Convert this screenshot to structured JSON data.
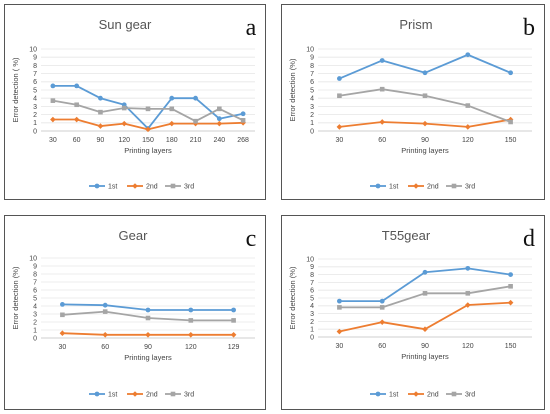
{
  "colors": {
    "s1": "#5b9bd5",
    "s2": "#ed7d31",
    "s3": "#a5a5a5"
  },
  "chart_data": [
    {
      "type": "line",
      "title": "Sun gear",
      "corner_label": "a",
      "xlabel": "Printing layers",
      "ylabel": "Error detection ( %)",
      "ylim": [
        0,
        10
      ],
      "yticks": [
        "0",
        "1",
        "2",
        "3",
        "4",
        "5",
        "6",
        "7",
        "8",
        "9",
        "10"
      ],
      "categories": [
        "30",
        "60",
        "90",
        "120",
        "150",
        "180",
        "210",
        "240",
        "268"
      ],
      "grid": true,
      "legend_position": "bottom",
      "series": [
        {
          "name": "1st",
          "values": [
            5.5,
            5.5,
            4.0,
            3.2,
            0.3,
            4.0,
            4.0,
            1.5,
            2.1
          ]
        },
        {
          "name": "2nd",
          "values": [
            1.4,
            1.4,
            0.6,
            0.9,
            0.2,
            0.9,
            0.9,
            0.9,
            1.0
          ]
        },
        {
          "name": "3rd",
          "values": [
            3.7,
            3.2,
            2.3,
            2.8,
            2.7,
            2.7,
            1.2,
            2.7,
            1.3
          ]
        }
      ]
    },
    {
      "type": "line",
      "title": "Prism",
      "corner_label": "b",
      "xlabel": "Printing layers",
      "ylabel": "Error detection (%)",
      "ylim": [
        0,
        10
      ],
      "yticks": [
        "0",
        "1",
        "2",
        "3",
        "4",
        "5",
        "6",
        "7",
        "8",
        "9",
        "10"
      ],
      "categories": [
        "30",
        "60",
        "90",
        "120",
        "150"
      ],
      "grid": true,
      "legend_position": "bottom",
      "series": [
        {
          "name": "1st",
          "values": [
            6.4,
            8.6,
            7.1,
            9.3,
            7.1
          ]
        },
        {
          "name": "2nd",
          "values": [
            0.5,
            1.1,
            0.9,
            0.5,
            1.4
          ]
        },
        {
          "name": "3rd",
          "values": [
            4.3,
            5.1,
            4.3,
            3.1,
            1.1
          ]
        }
      ]
    },
    {
      "type": "line",
      "title": "Gear",
      "corner_label": "c",
      "xlabel": "Printing layers",
      "ylabel": "Error detection (%)",
      "ylim": [
        0,
        10
      ],
      "yticks": [
        "0",
        "1",
        "2",
        "3",
        "4",
        "5",
        "6",
        "7",
        "8",
        "9",
        "10"
      ],
      "categories": [
        "30",
        "60",
        "90",
        "120",
        "129"
      ],
      "grid": true,
      "legend_position": "bottom",
      "series": [
        {
          "name": "1st",
          "values": [
            4.2,
            4.1,
            3.5,
            3.5,
            3.5
          ]
        },
        {
          "name": "2nd",
          "values": [
            0.6,
            0.4,
            0.4,
            0.4,
            0.4
          ]
        },
        {
          "name": "3rd",
          "values": [
            2.9,
            3.3,
            2.5,
            2.2,
            2.2
          ]
        }
      ]
    },
    {
      "type": "line",
      "title": "T55gear",
      "corner_label": "d",
      "xlabel": "Printing layers",
      "ylabel": "Error detection (%)",
      "ylim": [
        0,
        10
      ],
      "yticks": [
        "0",
        "1",
        "2",
        "3",
        "4",
        "5",
        "6",
        "7",
        "8",
        "9",
        "10"
      ],
      "categories": [
        "30",
        "60",
        "90",
        "120",
        "150"
      ],
      "grid": true,
      "legend_position": "bottom",
      "series": [
        {
          "name": "1st",
          "values": [
            4.6,
            4.6,
            8.3,
            8.8,
            8.0
          ]
        },
        {
          "name": "2nd",
          "values": [
            0.7,
            1.9,
            1.0,
            4.1,
            4.4
          ]
        },
        {
          "name": "3rd",
          "values": [
            3.8,
            3.8,
            5.6,
            5.6,
            6.5
          ]
        }
      ]
    }
  ]
}
